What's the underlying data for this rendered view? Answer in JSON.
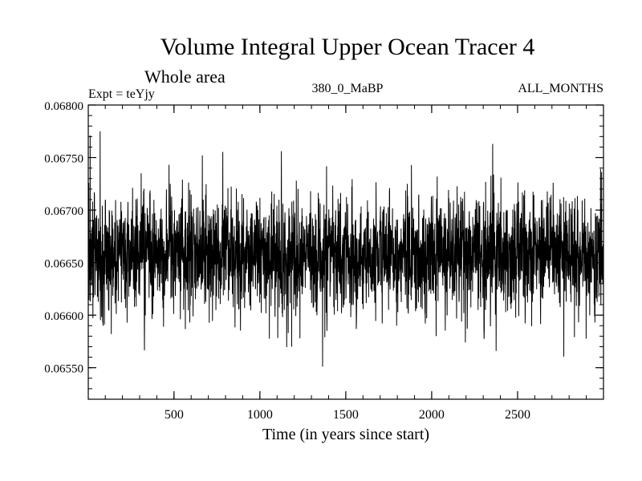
{
  "chart_data": {
    "type": "line",
    "title": "Volume Integral Upper Ocean Tracer 4",
    "subtitle": "Whole area",
    "expt_label": "Expt = teYjy",
    "run_label": "380_0_MaBP",
    "months_label": "ALL_MONTHS",
    "xlabel": "Time (in years since start)",
    "ylabel": "",
    "xlim": [
      1,
      3000
    ],
    "ylim": [
      0.0652,
      0.068
    ],
    "x_ticks": [
      500,
      1000,
      1500,
      2000,
      2500
    ],
    "x_tick_labels": [
      "500",
      "1000",
      "1500",
      "2000",
      "2500"
    ],
    "x_minor_step": 100,
    "y_ticks": [
      0.0655,
      0.066,
      0.0665,
      0.067,
      0.0675,
      0.068
    ],
    "y_tick_labels": [
      "0.06550",
      "0.06600",
      "0.06650",
      "0.06700",
      "0.06750",
      "0.06800"
    ],
    "y_minor_step": 0.0001,
    "grid": false,
    "series": [
      {
        "name": "Volume Integral Upper Ocean Tracer 4",
        "color": "#000000",
        "x_start": 1,
        "x_step": 1,
        "n_points": 3000,
        "mean": 0.06658,
        "std": 0.00027,
        "seed": 4217,
        "peaks": [
          {
            "x": 12,
            "y": 0.06771
          },
          {
            "x": 70,
            "y": 0.06775
          },
          {
            "x": 665,
            "y": 0.06752
          },
          {
            "x": 1125,
            "y": 0.06756
          },
          {
            "x": 2355,
            "y": 0.06763
          }
        ],
        "troughs": [
          {
            "x": 135,
            "y": 0.06582
          },
          {
            "x": 1165,
            "y": 0.06583
          },
          {
            "x": 1185,
            "y": 0.0657
          },
          {
            "x": 1365,
            "y": 0.06551
          },
          {
            "x": 2375,
            "y": 0.06566
          },
          {
            "x": 2950,
            "y": 0.06593
          }
        ]
      }
    ]
  }
}
